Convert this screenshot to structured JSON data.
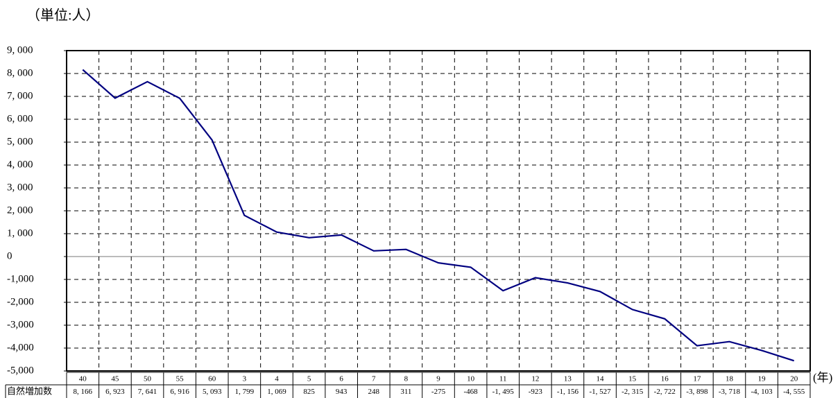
{
  "chart_data": {
    "type": "line",
    "unit_label": "（単位:人）",
    "x_unit_label": "(年)",
    "categories": [
      "40",
      "45",
      "50",
      "55",
      "60",
      "3",
      "4",
      "5",
      "6",
      "7",
      "8",
      "9",
      "10",
      "11",
      "12",
      "13",
      "14",
      "15",
      "16",
      "17",
      "18",
      "19",
      "20"
    ],
    "series": [
      {
        "name": "自然増加数",
        "color": "#000080",
        "values": [
          8166,
          6923,
          7641,
          6916,
          5093,
          1799,
          1069,
          825,
          943,
          248,
          311,
          -275,
          -468,
          -1495,
          -923,
          -1156,
          -1527,
          -2315,
          -2722,
          -3898,
          -3718,
          -4103,
          -4555
        ],
        "value_labels": [
          "8, 166",
          "6, 923",
          "7, 641",
          "6, 916",
          "5, 093",
          "1, 799",
          "1, 069",
          "825",
          "943",
          "248",
          "311",
          "-275",
          "-468",
          "-1, 495",
          "-923",
          "-1, 156",
          "-1, 527",
          "-2, 315",
          "-2, 722",
          "-3, 898",
          "-3, 718",
          "-4, 103",
          "-4, 555"
        ]
      }
    ],
    "ylim": [
      -5000,
      9000
    ],
    "yticks": [
      {
        "value": 9000,
        "label": "9, 000"
      },
      {
        "value": 8000,
        "label": "8, 000"
      },
      {
        "value": 7000,
        "label": "7, 000"
      },
      {
        "value": 6000,
        "label": "6, 000"
      },
      {
        "value": 5000,
        "label": "5, 000"
      },
      {
        "value": 4000,
        "label": "4, 000"
      },
      {
        "value": 3000,
        "label": "3, 000"
      },
      {
        "value": 2000,
        "label": "2, 000"
      },
      {
        "value": 1000,
        "label": "1, 000"
      },
      0,
      {
        "value": -1000,
        "label": "-1,000"
      },
      {
        "value": -2000,
        "label": "-2,000"
      },
      {
        "value": -3000,
        "label": "-3,000"
      },
      {
        "value": -4000,
        "label": "-4,000"
      },
      {
        "value": -5000,
        "label": "-5,000"
      }
    ],
    "grid": true
  }
}
